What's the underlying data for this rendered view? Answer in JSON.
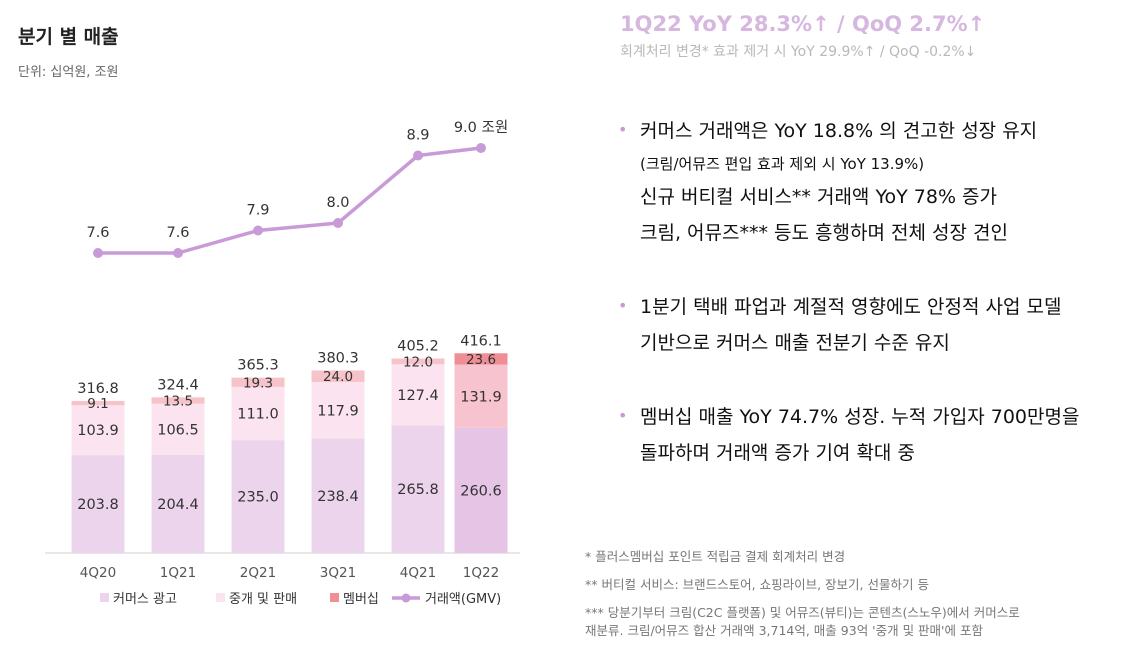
{
  "title": "분기 별 매출",
  "unit": "단위: 십억원, 조원",
  "headline": "1Q22 YoY 28.3%↑ / QoQ 2.7%↑",
  "subline": "회계처리 변경* 효과 제거 시 YoY 29.9%↑ / QoQ -0.2%↓",
  "bullets": [
    {
      "lines": [
        "커머스 거래액은 YoY 18.8% 의 견고한 성장 유지",
        "(크림/어뮤즈 편입 효과 제외 시 YoY 13.9%)",
        "신규 버티컬 서비스** 거래액 YoY 78% 증가",
        "크림, 어뮤즈*** 등도 흥행하며 전체 성장 견인"
      ]
    },
    {
      "lines": [
        "1분기 택배 파업과 계절적 영향에도 안정적 사업 모델",
        "기반으로 커머스 매출 전분기 수준 유지"
      ]
    },
    {
      "lines": [
        "멤버십 매출 YoY 74.7% 성장. 누적 가입자 700만명을",
        "돌파하며 거래액 증가 기여 확대 중"
      ]
    }
  ],
  "notes": [
    "* 플러스멤버십 포인트 적립금 결제 회계처리 변경",
    "** 버티컬 서비스: 브랜드스토어, 쇼핑라이브, 장보기, 선물하기 등",
    "*** 당분기부터 크림(C2C 플랫폼) 및 어뮤즈(뷰티)는 콘텐츠(스노우)에서 커머스로",
    "재분류. 크림/어뮤즈 합산 거래액 3,714억, 매출 93억 '중개 및 판매'에 포함"
  ],
  "colors": {
    "ad": "#ecd4ec",
    "ad_last": "#e6c4e6",
    "brokerage": "#fbe4ef",
    "brokerage_last": "#f7c3cf",
    "membership": "#f7c3ca",
    "membership_last": "#f08e96",
    "gmv_line": "#c99ad8",
    "headline": "#d6b7df",
    "bullet": "#c99ad8"
  },
  "chart_data": {
    "type": "bar",
    "stacked": true,
    "categories": [
      "4Q20",
      "1Q21",
      "2Q21",
      "3Q21",
      "4Q21",
      "1Q22"
    ],
    "series": [
      {
        "name": "커머스 광고",
        "values": [
          203.8,
          204.4,
          235.0,
          238.4,
          265.8,
          260.6
        ],
        "labels": [
          "203.8",
          "204.4",
          "235.0",
          "238.4",
          "265.8",
          "260.6"
        ]
      },
      {
        "name": "중개 및 판매",
        "values": [
          103.9,
          106.5,
          111.0,
          117.9,
          127.4,
          131.9
        ],
        "labels": [
          "103.9",
          "106.5",
          "111.0",
          "117.9",
          "127.4",
          "131.9"
        ]
      },
      {
        "name": "멤버십",
        "values": [
          9.1,
          13.5,
          19.3,
          24.0,
          12.0,
          23.6
        ],
        "labels": [
          "9.1",
          "13.5",
          "19.3",
          "24.0",
          "12.0",
          "23.6"
        ]
      }
    ],
    "totals": [
      316.8,
      324.4,
      365.3,
      380.3,
      405.2,
      416.1
    ],
    "total_labels": [
      "316.8",
      "324.4",
      "365.3",
      "380.3",
      "405.2",
      "416.1"
    ],
    "line": {
      "name": "거래액(GMV)",
      "values": [
        7.6,
        7.6,
        7.9,
        8.0,
        8.9,
        9.0
      ],
      "labels": [
        "7.6",
        "7.6",
        "7.9",
        "8.0",
        "8.9",
        "9.0 조원"
      ]
    },
    "legend": [
      "커머스 광고",
      "중개 및 판매",
      "멤버십",
      "거래액(GMV)"
    ],
    "legend_position": "bottom",
    "ylabel": "십억원",
    "grid": false
  }
}
